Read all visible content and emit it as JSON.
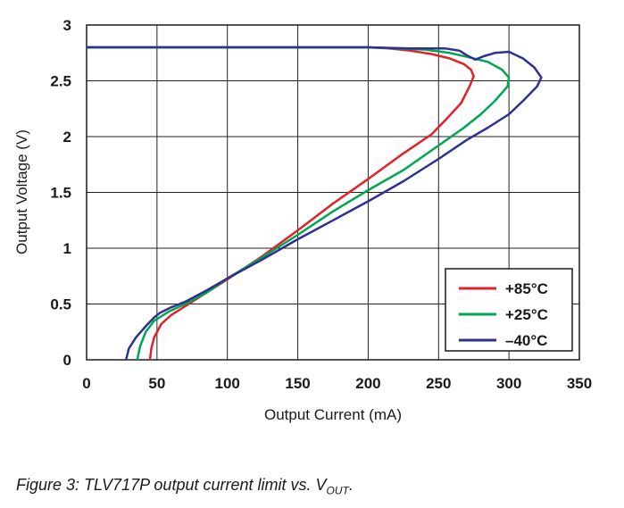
{
  "chart_data": {
    "type": "line",
    "title": "",
    "xlabel": "Output Current (mA)",
    "ylabel": "Output Voltage (V)",
    "xlim": [
      0,
      350
    ],
    "ylim": [
      0,
      3
    ],
    "xticks": [
      "0",
      "50",
      "100",
      "150",
      "200",
      "250",
      "300",
      "350"
    ],
    "yticks": [
      "0",
      "0.5",
      "1",
      "1.5",
      "2",
      "2.5",
      "3"
    ],
    "grid": true,
    "legend_position": "bottom-right",
    "series": [
      {
        "name": "+85°C",
        "color": "#e32027",
        "points": [
          [
            0,
            2.8
          ],
          [
            100,
            2.8
          ],
          [
            200,
            2.8
          ],
          [
            215,
            2.79
          ],
          [
            230,
            2.77
          ],
          [
            245,
            2.74
          ],
          [
            258,
            2.7
          ],
          [
            268,
            2.65
          ],
          [
            273,
            2.6
          ],
          [
            275,
            2.54
          ],
          [
            272,
            2.45
          ],
          [
            266,
            2.3
          ],
          [
            255,
            2.15
          ],
          [
            245,
            2.02
          ],
          [
            225,
            1.85
          ],
          [
            200,
            1.62
          ],
          [
            175,
            1.4
          ],
          [
            150,
            1.16
          ],
          [
            125,
            0.93
          ],
          [
            100,
            0.72
          ],
          [
            85,
            0.6
          ],
          [
            70,
            0.48
          ],
          [
            60,
            0.4
          ],
          [
            53,
            0.32
          ],
          [
            48,
            0.2
          ],
          [
            46,
            0.1
          ],
          [
            45,
            0.0
          ]
        ]
      },
      {
        "name": "+25°C",
        "color": "#00a651",
        "points": [
          [
            0,
            2.8
          ],
          [
            100,
            2.8
          ],
          [
            200,
            2.8
          ],
          [
            220,
            2.79
          ],
          [
            240,
            2.78
          ],
          [
            258,
            2.75
          ],
          [
            272,
            2.71
          ],
          [
            285,
            2.67
          ],
          [
            295,
            2.6
          ],
          [
            300,
            2.53
          ],
          [
            299,
            2.45
          ],
          [
            290,
            2.32
          ],
          [
            280,
            2.2
          ],
          [
            268,
            2.08
          ],
          [
            250,
            1.92
          ],
          [
            225,
            1.7
          ],
          [
            200,
            1.52
          ],
          [
            175,
            1.33
          ],
          [
            150,
            1.12
          ],
          [
            125,
            0.92
          ],
          [
            100,
            0.73
          ],
          [
            85,
            0.6
          ],
          [
            70,
            0.5
          ],
          [
            58,
            0.43
          ],
          [
            48,
            0.35
          ],
          [
            42,
            0.25
          ],
          [
            38,
            0.12
          ],
          [
            36,
            0.0
          ]
        ]
      },
      {
        "name": "–40°C",
        "color": "#2e3192",
        "points": [
          [
            0,
            2.8
          ],
          [
            100,
            2.8
          ],
          [
            200,
            2.8
          ],
          [
            230,
            2.79
          ],
          [
            255,
            2.79
          ],
          [
            265,
            2.77
          ],
          [
            270,
            2.73
          ],
          [
            276,
            2.69
          ],
          [
            282,
            2.72
          ],
          [
            290,
            2.75
          ],
          [
            300,
            2.76
          ],
          [
            310,
            2.7
          ],
          [
            318,
            2.62
          ],
          [
            323,
            2.53
          ],
          [
            320,
            2.45
          ],
          [
            310,
            2.32
          ],
          [
            300,
            2.2
          ],
          [
            285,
            2.08
          ],
          [
            270,
            1.97
          ],
          [
            250,
            1.8
          ],
          [
            225,
            1.6
          ],
          [
            200,
            1.42
          ],
          [
            175,
            1.25
          ],
          [
            150,
            1.08
          ],
          [
            125,
            0.9
          ],
          [
            100,
            0.73
          ],
          [
            85,
            0.62
          ],
          [
            70,
            0.52
          ],
          [
            60,
            0.47
          ],
          [
            52,
            0.42
          ],
          [
            48,
            0.38
          ],
          [
            42,
            0.3
          ],
          [
            35,
            0.2
          ],
          [
            30,
            0.1
          ],
          [
            28,
            0.0
          ]
        ]
      }
    ]
  },
  "caption": {
    "main": "Figure 3: TLV717P output current limit vs. V",
    "sub": "OUT",
    "end": "."
  }
}
